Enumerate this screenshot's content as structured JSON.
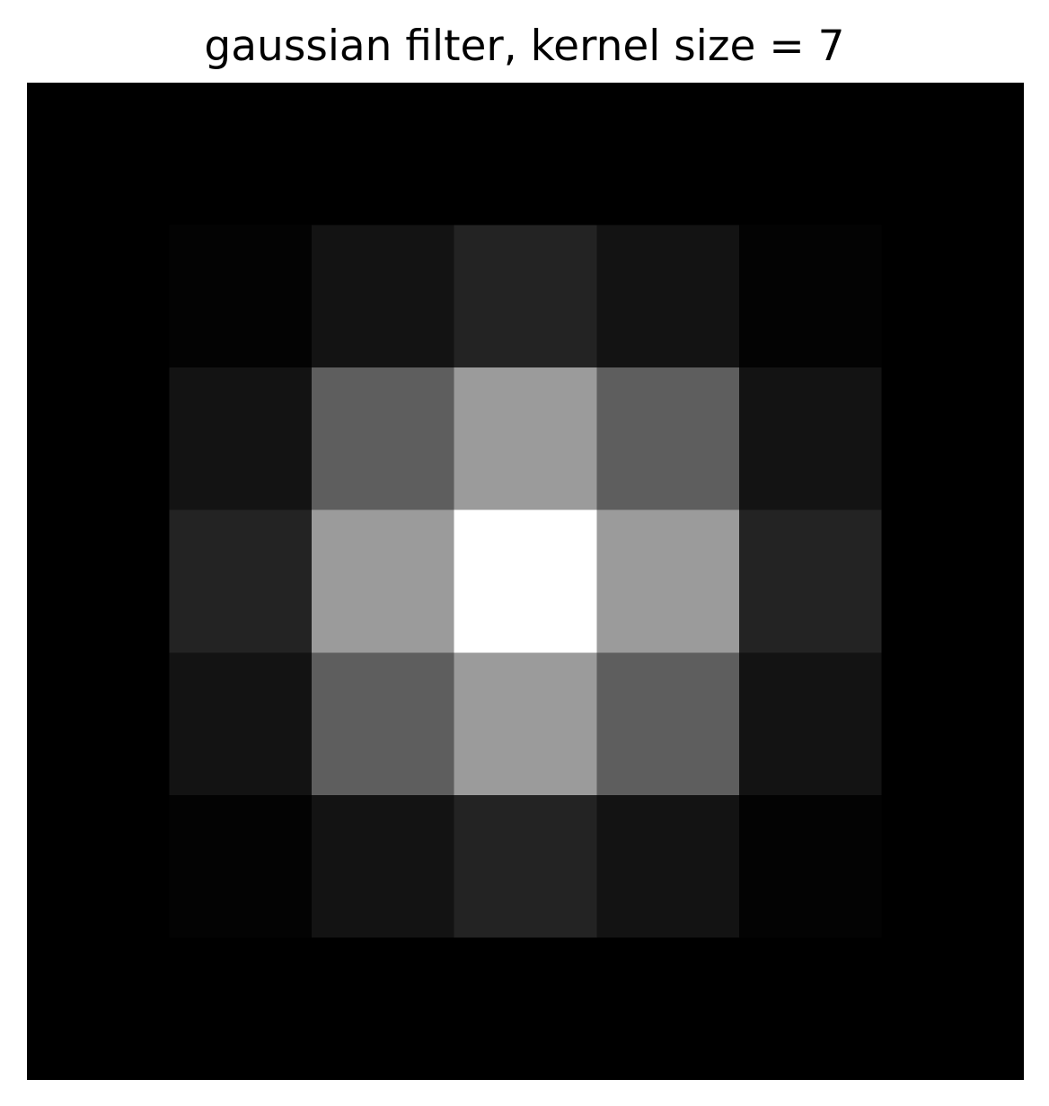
{
  "chart_data": {
    "type": "heatmap",
    "title": "gaussian filter, kernel size = 7",
    "rows": 7,
    "cols": 7,
    "colormap": "gray",
    "vmin": 0,
    "vmax": 1,
    "axes_visible": false,
    "grid": false,
    "values": [
      [
        0.0,
        0.0,
        0.0,
        0.0,
        0.0,
        0.0,
        0.0
      ],
      [
        0.0,
        0.0134,
        0.0758,
        0.1353,
        0.0758,
        0.0134,
        0.0
      ],
      [
        0.0,
        0.0758,
        0.3679,
        0.6065,
        0.3679,
        0.0758,
        0.0
      ],
      [
        0.0,
        0.1353,
        0.6065,
        1.0,
        0.6065,
        0.1353,
        0.0
      ],
      [
        0.0,
        0.0758,
        0.3679,
        0.6065,
        0.3679,
        0.0758,
        0.0
      ],
      [
        0.0,
        0.0134,
        0.0758,
        0.1353,
        0.0758,
        0.0134,
        0.0
      ],
      [
        0.0,
        0.0,
        0.0,
        0.0,
        0.0,
        0.0,
        0.0
      ]
    ]
  }
}
